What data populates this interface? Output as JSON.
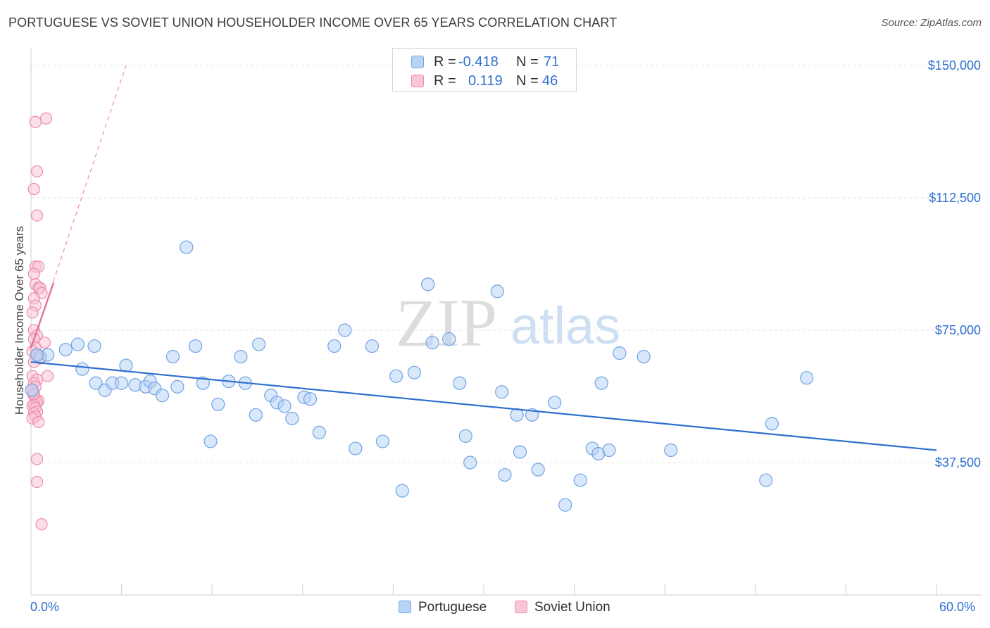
{
  "title": "PORTUGUESE VS SOVIET UNION HOUSEHOLDER INCOME OVER 65 YEARS CORRELATION CHART",
  "source": "Source: ZipAtlas.com",
  "watermark": {
    "zip": "ZIP",
    "atlas": "atlas"
  },
  "legend_box": {
    "r_label": "R =",
    "n_label": "N =",
    "rows": [
      {
        "series": "Portuguese",
        "r": "-0.418",
        "n": "71"
      },
      {
        "series": "Soviet Union",
        "r": "0.119",
        "n": "46"
      }
    ]
  },
  "colors": {
    "portuguese_fill": "#b8d4f5",
    "portuguese_stroke": "#6fa3e3",
    "portuguese_line": "#2d6fce",
    "soviet_fill": "#f8c6d6",
    "soviet_stroke": "#ee8aab",
    "soviet_line": "#e8709a",
    "axis_text": "#2f6fd0"
  },
  "chart_data": {
    "type": "scatter",
    "title": "PORTUGUESE VS SOVIET UNION HOUSEHOLDER INCOME OVER 65 YEARS CORRELATION CHART",
    "xlabel": "",
    "ylabel": "Householder Income Over 65 years",
    "xlim": [
      0,
      60
    ],
    "ylim": [
      0,
      153000
    ],
    "x_tick_labels": [
      "0.0%",
      "60.0%"
    ],
    "y_ticks": [
      37500,
      75000,
      112500,
      150000
    ],
    "y_tick_labels": [
      "$37,500",
      "$75,000",
      "$112,500",
      "$150,000"
    ],
    "grid": true,
    "legend": [
      "Portuguese",
      "Soviet Union"
    ],
    "series": [
      {
        "name": "Portuguese",
        "marker": "circle",
        "points": [
          [
            0.6,
            67500
          ],
          [
            1.1,
            68000
          ],
          [
            3.1,
            71000
          ],
          [
            2.3,
            69500
          ],
          [
            3.4,
            64000
          ],
          [
            4.2,
            70500
          ],
          [
            4.3,
            60000
          ],
          [
            4.9,
            58000
          ],
          [
            5.4,
            60000
          ],
          [
            6.0,
            60000
          ],
          [
            6.3,
            65000
          ],
          [
            6.9,
            59500
          ],
          [
            7.6,
            59000
          ],
          [
            7.9,
            60500
          ],
          [
            8.2,
            58500
          ],
          [
            8.7,
            56500
          ],
          [
            9.4,
            67500
          ],
          [
            9.7,
            59000
          ],
          [
            10.3,
            98500
          ],
          [
            10.9,
            70500
          ],
          [
            11.4,
            60000
          ],
          [
            11.9,
            43500
          ],
          [
            12.4,
            54000
          ],
          [
            13.1,
            60500
          ],
          [
            13.9,
            67500
          ],
          [
            14.2,
            60000
          ],
          [
            14.9,
            51000
          ],
          [
            15.1,
            71000
          ],
          [
            15.9,
            56500
          ],
          [
            16.3,
            54500
          ],
          [
            16.8,
            53500
          ],
          [
            17.3,
            50000
          ],
          [
            18.1,
            56000
          ],
          [
            18.5,
            55500
          ],
          [
            19.1,
            46000
          ],
          [
            20.1,
            70500
          ],
          [
            20.8,
            75000
          ],
          [
            21.5,
            41500
          ],
          [
            22.6,
            70500
          ],
          [
            23.3,
            43500
          ],
          [
            24.2,
            62000
          ],
          [
            24.6,
            29500
          ],
          [
            25.4,
            63000
          ],
          [
            26.3,
            88000
          ],
          [
            26.6,
            71500
          ],
          [
            27.7,
            72500
          ],
          [
            28.4,
            60000
          ],
          [
            28.8,
            45000
          ],
          [
            29.1,
            37500
          ],
          [
            30.9,
            86000
          ],
          [
            31.2,
            57500
          ],
          [
            31.4,
            34000
          ],
          [
            32.2,
            51000
          ],
          [
            32.4,
            40500
          ],
          [
            33.2,
            51000
          ],
          [
            33.6,
            35500
          ],
          [
            34.7,
            54500
          ],
          [
            35.4,
            25500
          ],
          [
            36.4,
            32500
          ],
          [
            37.2,
            41500
          ],
          [
            37.6,
            40000
          ],
          [
            37.8,
            60000
          ],
          [
            38.3,
            41000
          ],
          [
            39.0,
            68500
          ],
          [
            40.6,
            67500
          ],
          [
            42.4,
            41000
          ],
          [
            48.7,
            32500
          ],
          [
            49.1,
            48500
          ],
          [
            51.4,
            61500
          ],
          [
            0.05,
            58000
          ],
          [
            0.4,
            68000
          ]
        ],
        "trend": {
          "x": [
            0,
            60
          ],
          "y": [
            66000,
            41000
          ]
        }
      },
      {
        "name": "Soviet Union",
        "marker": "circle",
        "points": [
          [
            0.3,
            134000
          ],
          [
            1.0,
            135000
          ],
          [
            0.4,
            120000
          ],
          [
            0.2,
            115000
          ],
          [
            0.4,
            107500
          ],
          [
            0.3,
            93000
          ],
          [
            0.5,
            93000
          ],
          [
            0.2,
            91000
          ],
          [
            0.3,
            88000
          ],
          [
            0.5,
            87000
          ],
          [
            0.6,
            87000
          ],
          [
            0.7,
            85500
          ],
          [
            0.2,
            84000
          ],
          [
            0.3,
            82000
          ],
          [
            0.1,
            80000
          ],
          [
            0.2,
            75000
          ],
          [
            0.4,
            73500
          ],
          [
            0.2,
            72500
          ],
          [
            0.9,
            71500
          ],
          [
            0.3,
            70000
          ],
          [
            0.1,
            69000
          ],
          [
            0.4,
            68000
          ],
          [
            0.6,
            67000
          ],
          [
            0.2,
            66000
          ],
          [
            0.1,
            62000
          ],
          [
            1.1,
            62000
          ],
          [
            0.4,
            61000
          ],
          [
            0.2,
            60000
          ],
          [
            0.3,
            59000
          ],
          [
            0.1,
            58000
          ],
          [
            0.2,
            56500
          ],
          [
            0.3,
            55500
          ],
          [
            0.5,
            55000
          ],
          [
            0.4,
            54500
          ],
          [
            0.2,
            54000
          ],
          [
            0.1,
            53500
          ],
          [
            0.3,
            53000
          ],
          [
            0.4,
            52000
          ],
          [
            0.2,
            51500
          ],
          [
            0.3,
            50500
          ],
          [
            0.1,
            50000
          ],
          [
            0.5,
            49000
          ],
          [
            0.4,
            38500
          ],
          [
            0.4,
            32000
          ],
          [
            0.7,
            20000
          ],
          [
            0.2,
            57000
          ]
        ],
        "trend_solid": {
          "x": [
            0,
            1.5
          ],
          "y": [
            70000,
            88500
          ]
        },
        "trend_dashed": {
          "x": [
            0,
            6.3
          ],
          "y": [
            70000,
            150000
          ]
        }
      }
    ]
  }
}
